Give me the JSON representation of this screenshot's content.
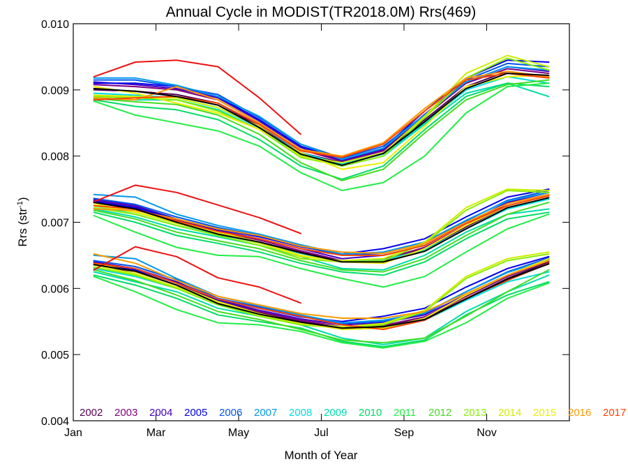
{
  "chart_data": {
    "type": "line",
    "title": "Annual Cycle in MODIST(TR2018.0M) Rrs(469)",
    "xlabel": "Month of Year",
    "ylabel": "Rrs (str",
    "ylabel_superscript": "-1",
    "ylabel_suffix": ")",
    "xlim": [
      0,
      12
    ],
    "ylim": [
      0.004,
      0.01
    ],
    "x_ticks": [
      {
        "value": 0,
        "label": "Jan"
      },
      {
        "value": 2,
        "label": "Mar"
      },
      {
        "value": 4,
        "label": "May"
      },
      {
        "value": 6,
        "label": "Jul"
      },
      {
        "value": 8,
        "label": "Sep"
      },
      {
        "value": 10,
        "label": "Nov"
      }
    ],
    "y_ticks": [
      {
        "value": 0.004,
        "label": "0.004"
      },
      {
        "value": 0.005,
        "label": "0.005"
      },
      {
        "value": 0.006,
        "label": "0.006"
      },
      {
        "value": 0.007,
        "label": "0.007"
      },
      {
        "value": 0.008,
        "label": "0.008"
      },
      {
        "value": 0.009,
        "label": "0.009"
      },
      {
        "value": 0.01,
        "label": "0.010"
      }
    ],
    "x": [
      0.5,
      1.5,
      2.5,
      3.5,
      4.5,
      5.5,
      6.5,
      7.5,
      8.5,
      9.5,
      10.5,
      11.5
    ],
    "legend_placement": "bottom",
    "grid": false,
    "series": [
      {
        "name": "2002",
        "color": "#550055",
        "groups": [
          [
            0.009,
            0.00898,
            0.00893,
            0.0088,
            0.00845,
            0.00805,
            0.0079,
            0.00805,
            0.00855,
            0.00905,
            0.00928,
            0.0092
          ],
          [
            0.0073,
            0.0072,
            0.007,
            0.00683,
            0.0067,
            0.00655,
            0.0064,
            0.00642,
            0.0066,
            0.00693,
            0.00725,
            0.0074
          ],
          [
            0.00635,
            0.00625,
            0.00605,
            0.00578,
            0.00563,
            0.0055,
            0.0054,
            0.00542,
            0.00555,
            0.00585,
            0.00615,
            0.0064
          ]
        ]
      },
      {
        "name": "2003",
        "color": "#800080",
        "groups": [
          [
            0.00908,
            0.00905,
            0.009,
            0.00885,
            0.0085,
            0.0081,
            0.00792,
            0.00808,
            0.0086,
            0.0091,
            0.00932,
            0.00925
          ],
          [
            0.00733,
            0.00723,
            0.00703,
            0.00686,
            0.00673,
            0.00657,
            0.00642,
            0.00644,
            0.00662,
            0.00695,
            0.00728,
            0.00742
          ],
          [
            0.00638,
            0.00628,
            0.00608,
            0.0058,
            0.00565,
            0.00552,
            0.00542,
            0.00544,
            0.00557,
            0.00588,
            0.00618,
            0.00642
          ]
        ]
      },
      {
        "name": "2004",
        "color": "#4000c0",
        "groups": [
          [
            0.00912,
            0.00908,
            0.00902,
            0.00888,
            0.00853,
            0.00813,
            0.00793,
            0.0081,
            0.00863,
            0.00912,
            0.00935,
            0.00928
          ],
          [
            0.00735,
            0.00725,
            0.00705,
            0.00688,
            0.00675,
            0.0066,
            0.00645,
            0.0065,
            0.00665,
            0.00698,
            0.0073,
            0.00745
          ],
          [
            0.0064,
            0.0063,
            0.0061,
            0.00582,
            0.00567,
            0.00554,
            0.00545,
            0.00548,
            0.0056,
            0.0059,
            0.0062,
            0.00645
          ]
        ]
      },
      {
        "name": "2005",
        "color": "#0000ee",
        "groups": [
          [
            0.0091,
            0.0091,
            0.00905,
            0.0089,
            0.00855,
            0.00815,
            0.00795,
            0.00812,
            0.00868,
            0.00918,
            0.00945,
            0.00942
          ],
          [
            0.00732,
            0.00722,
            0.00705,
            0.0069,
            0.00678,
            0.00663,
            0.00652,
            0.0066,
            0.00675,
            0.00708,
            0.00738,
            0.0075
          ],
          [
            0.00637,
            0.00628,
            0.0061,
            0.00583,
            0.0057,
            0.00557,
            0.0055,
            0.00558,
            0.0057,
            0.00602,
            0.0063,
            0.00648
          ]
        ]
      },
      {
        "name": "2006",
        "color": "#0055ee",
        "groups": [
          [
            0.00915,
            0.00915,
            0.00905,
            0.00893,
            0.00858,
            0.00818,
            0.00797,
            0.00815,
            0.00862,
            0.00915,
            0.0094,
            0.00935
          ],
          [
            0.00736,
            0.00727,
            0.00708,
            0.00692,
            0.0068,
            0.00664,
            0.0065,
            0.00653,
            0.00668,
            0.00702,
            0.00733,
            0.00748
          ],
          [
            0.00642,
            0.00633,
            0.00613,
            0.00585,
            0.00572,
            0.00558,
            0.00547,
            0.0055,
            0.00562,
            0.00595,
            0.00625,
            0.00646
          ]
        ]
      },
      {
        "name": "2007",
        "color": "#0099ee",
        "groups": [
          [
            0.00918,
            0.00918,
            0.00907,
            0.0089,
            0.0086,
            0.00818,
            0.00795,
            0.00812,
            0.00862,
            0.00912,
            0.00935,
            0.0093
          ],
          [
            0.00742,
            0.00738,
            0.00712,
            0.00695,
            0.00682,
            0.00666,
            0.00652,
            0.00655,
            0.0067,
            0.00703,
            0.00732,
            0.00745
          ],
          [
            0.0065,
            0.00645,
            0.00615,
            0.00588,
            0.00574,
            0.0056,
            0.00548,
            0.00552,
            0.00563,
            0.00595,
            0.00624,
            0.00644
          ]
        ]
      },
      {
        "name": "2008",
        "color": "#00dddd",
        "groups": [
          [
            0.00895,
            0.00892,
            0.00888,
            0.00873,
            0.00843,
            0.00805,
            0.00788,
            0.00803,
            0.0085,
            0.009,
            0.0092,
            0.0091
          ],
          [
            0.00725,
            0.00712,
            0.00695,
            0.00682,
            0.00668,
            0.00653,
            0.0064,
            0.00643,
            0.00658,
            0.0069,
            0.0072,
            0.00735
          ],
          [
            0.0063,
            0.00618,
            0.006,
            0.00575,
            0.0056,
            0.00548,
            0.00538,
            0.0054,
            0.00552,
            0.00582,
            0.0061,
            0.00625
          ]
        ]
      },
      {
        "name": "2009",
        "color": "#00ddaa",
        "groups": [
          [
            0.00888,
            0.00885,
            0.00885,
            0.0087,
            0.0084,
            0.00802,
            0.00785,
            0.008,
            0.00848,
            0.00895,
            0.0091,
            0.0089
          ],
          [
            0.0072,
            0.00708,
            0.0069,
            0.00678,
            0.00665,
            0.00648,
            0.0063,
            0.00628,
            0.0065,
            0.00685,
            0.00712,
            0.0072
          ],
          [
            0.00625,
            0.0061,
            0.00595,
            0.0057,
            0.00558,
            0.00545,
            0.00525,
            0.00515,
            0.00525,
            0.00565,
            0.00595,
            0.0062
          ]
        ]
      },
      {
        "name": "2010",
        "color": "#00dd66",
        "groups": [
          [
            0.00885,
            0.00875,
            0.0087,
            0.00855,
            0.00825,
            0.00785,
            0.00765,
            0.00785,
            0.0084,
            0.0089,
            0.0091,
            0.00905
          ],
          [
            0.00715,
            0.007,
            0.0068,
            0.00668,
            0.00655,
            0.00638,
            0.00625,
            0.0062,
            0.0064,
            0.00675,
            0.00705,
            0.00715
          ],
          [
            0.0062,
            0.00605,
            0.00585,
            0.0056,
            0.0055,
            0.0054,
            0.0052,
            0.00512,
            0.00522,
            0.0056,
            0.0059,
            0.0061
          ]
        ]
      },
      {
        "name": "2011",
        "color": "#22ee44",
        "groups": [
          [
            0.00883,
            0.00862,
            0.0085,
            0.00838,
            0.00815,
            0.00775,
            0.00748,
            0.0076,
            0.008,
            0.00865,
            0.00905,
            0.0091
          ],
          [
            0.0071,
            0.00685,
            0.00662,
            0.0065,
            0.00648,
            0.0063,
            0.00615,
            0.00602,
            0.00618,
            0.00655,
            0.0069,
            0.00712
          ],
          [
            0.00618,
            0.00595,
            0.00568,
            0.00548,
            0.00545,
            0.00535,
            0.00518,
            0.0051,
            0.0052,
            0.00548,
            0.00585,
            0.00608
          ]
        ]
      },
      {
        "name": "2012",
        "color": "#44dd22",
        "groups": [
          [
            0.00887,
            0.00882,
            0.00878,
            0.00862,
            0.00833,
            0.0079,
            0.00763,
            0.0078,
            0.00835,
            0.00885,
            0.00908,
            0.00915
          ],
          [
            0.00718,
            0.00705,
            0.00685,
            0.00672,
            0.0066,
            0.00642,
            0.00628,
            0.00625,
            0.00645,
            0.0068,
            0.00712,
            0.0073
          ],
          [
            0.00628,
            0.00612,
            0.0059,
            0.00565,
            0.00553,
            0.00538,
            0.00522,
            0.00518,
            0.00525,
            0.00558,
            0.00595,
            0.00628
          ]
        ]
      },
      {
        "name": "2013",
        "color": "#88ee00",
        "groups": [
          [
            0.0089,
            0.00888,
            0.00885,
            0.00868,
            0.0084,
            0.00798,
            0.00785,
            0.008,
            0.00858,
            0.00918,
            0.00948,
            0.0093
          ],
          [
            0.00722,
            0.00712,
            0.00695,
            0.0068,
            0.00665,
            0.00645,
            0.0064,
            0.00642,
            0.00668,
            0.00718,
            0.00748,
            0.00745
          ],
          [
            0.00632,
            0.0062,
            0.006,
            0.00575,
            0.00558,
            0.00545,
            0.0054,
            0.00545,
            0.00565,
            0.00615,
            0.00642,
            0.00652
          ]
        ]
      },
      {
        "name": "2014",
        "color": "#ccee00",
        "groups": [
          [
            0.00892,
            0.0089,
            0.00888,
            0.00873,
            0.00845,
            0.008,
            0.0079,
            0.00805,
            0.0086,
            0.00925,
            0.00952,
            0.00935
          ],
          [
            0.00725,
            0.00715,
            0.00698,
            0.00683,
            0.00668,
            0.00648,
            0.00642,
            0.00645,
            0.0067,
            0.00722,
            0.0075,
            0.00748
          ],
          [
            0.00635,
            0.00622,
            0.00602,
            0.00578,
            0.0056,
            0.00547,
            0.00542,
            0.00547,
            0.00567,
            0.00618,
            0.00645,
            0.00655
          ]
        ]
      },
      {
        "name": "2015",
        "color": "#eeee00",
        "groups": [
          [
            0.00905,
            0.00895,
            0.0088,
            0.00865,
            0.0084,
            0.00805,
            0.0078,
            0.0079,
            0.00845,
            0.00905,
            0.0092,
            0.00922
          ],
          [
            0.00728,
            0.00716,
            0.007,
            0.00685,
            0.0067,
            0.0065,
            0.0064,
            0.00638,
            0.0066,
            0.00695,
            0.00725,
            0.0074
          ],
          [
            0.00638,
            0.00625,
            0.00605,
            0.0058,
            0.00562,
            0.00548,
            0.00538,
            0.0054,
            0.00555,
            0.0059,
            0.0062,
            0.00645
          ]
        ]
      },
      {
        "name": "2016",
        "color": "#ff9900",
        "groups": [
          [
            0.00888,
            0.00885,
            0.00905,
            0.00885,
            0.0085,
            0.0081,
            0.008,
            0.0082,
            0.00872,
            0.00918,
            0.00928,
            0.0092
          ],
          [
            0.0072,
            0.00718,
            0.00705,
            0.0069,
            0.0068,
            0.00664,
            0.00655,
            0.00653,
            0.00668,
            0.007,
            0.00728,
            0.00742
          ],
          [
            0.00652,
            0.00638,
            0.00612,
            0.00588,
            0.00575,
            0.00562,
            0.00555,
            0.00555,
            0.00565,
            0.00592,
            0.0062,
            0.00642
          ]
        ]
      },
      {
        "name": "2017",
        "color": "#ff4400",
        "groups": [
          [
            0.00885,
            0.00888,
            0.0089,
            0.0088,
            0.00848,
            0.00808,
            0.00798,
            0.00818,
            0.00868,
            0.00915,
            0.00925,
            0.00918
          ],
          [
            0.00725,
            0.0072,
            0.00702,
            0.00686,
            0.00675,
            0.0066,
            0.0065,
            0.0065,
            0.00665,
            0.00698,
            0.00725,
            0.0074
          ],
          [
            0.00638,
            0.0063,
            0.00608,
            0.00584,
            0.0057,
            0.00558,
            0.00545,
            0.00538,
            0.00552,
            0.00585,
            0.00612,
            0.00638
          ]
        ]
      },
      {
        "name": "",
        "color": "#ee1111",
        "groups": [
          [
            0.0092,
            0.00942,
            0.00945,
            0.00935,
            0.00888,
            0.00833
          ],
          [
            0.00731,
            0.00756,
            0.00745,
            0.00726,
            0.00707,
            0.00683
          ],
          [
            0.00628,
            0.00663,
            0.00648,
            0.00616,
            0.00602,
            0.00578
          ]
        ]
      },
      {
        "name": "",
        "color": "#000000",
        "groups": [
          [
            0.00902,
            0.00898,
            0.0089,
            0.00877,
            0.00843,
            0.00803,
            0.00786,
            0.00804,
            0.00852,
            0.00902,
            0.00925,
            0.00922
          ],
          [
            0.0073,
            0.0072,
            0.007,
            0.00682,
            0.0067,
            0.00654,
            0.0064,
            0.0064,
            0.00656,
            0.0069,
            0.00722,
            0.00737
          ],
          [
            0.00636,
            0.00626,
            0.00605,
            0.00577,
            0.00561,
            0.00549,
            0.0054,
            0.00542,
            0.00553,
            0.00584,
            0.00614,
            0.00637
          ]
        ],
        "width": 3
      }
    ]
  }
}
